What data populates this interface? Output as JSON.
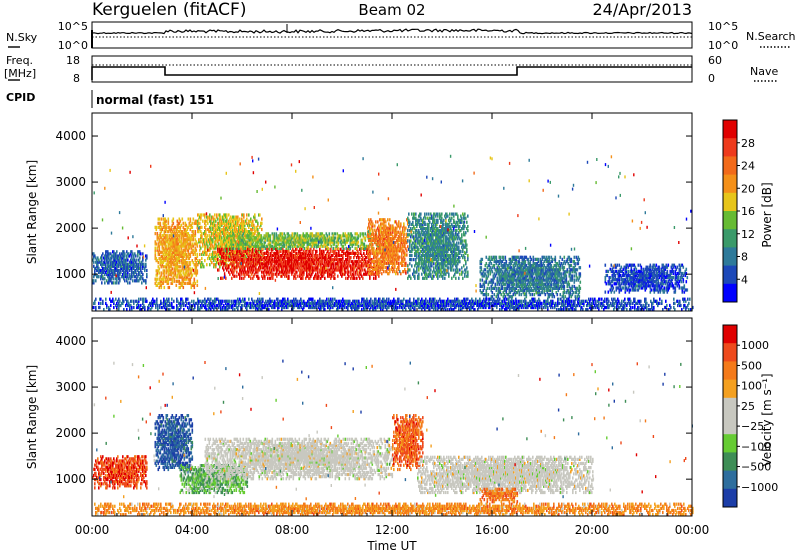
{
  "header": {
    "station": "Kerguelen (fitACF)",
    "beam": "Beam 02",
    "date": "24/Apr/2013"
  },
  "noise_panel": {
    "left_label": "N.Sky",
    "right_label": "N.Search",
    "left_ticks": [
      "10^5",
      "10^0"
    ],
    "right_ticks": [
      "10^5",
      "10^0"
    ]
  },
  "freq_panel": {
    "left_label_1": "Freq.",
    "left_label_2": "[MHz]",
    "right_label": "Nave",
    "left_ticks": [
      "18",
      "8"
    ],
    "right_ticks": [
      "60",
      "0"
    ]
  },
  "cpid_panel": {
    "label": "CPID",
    "value": "normal (fast) 151"
  },
  "chart_data": [
    {
      "type": "heatmap",
      "name": "power",
      "ylabel": "Slant Range [km]",
      "ylim": [
        200,
        4500
      ],
      "yticks": [
        "1000",
        "2000",
        "3000",
        "4000"
      ],
      "xlim": [
        0,
        24
      ],
      "colorbar": {
        "label": "Power [dB]",
        "ticks": [
          "4",
          "8",
          "12",
          "16",
          "20",
          "24",
          "28"
        ],
        "range": [
          0,
          32
        ],
        "colors": [
          "#0000ff",
          "#1c48b8",
          "#2e7a9a",
          "#3a9a6a",
          "#66bb33",
          "#e7c51a",
          "#f49019",
          "#f26a1a",
          "#ee3a1c",
          "#e00000"
        ]
      },
      "features": [
        {
          "t0": 0.0,
          "t1": 2.2,
          "r0": 800,
          "r1": 1500,
          "level": 0.2
        },
        {
          "t0": 2.5,
          "t1": 4.2,
          "r0": 700,
          "r1": 2200,
          "level": 0.62
        },
        {
          "t0": 4.2,
          "t1": 6.8,
          "r0": 1150,
          "r1": 2300,
          "level": 0.55
        },
        {
          "t0": 5.0,
          "t1": 11.5,
          "r0": 900,
          "r1": 1550,
          "level": 0.9
        },
        {
          "t0": 5.5,
          "t1": 11.5,
          "r0": 1550,
          "r1": 1900,
          "level": 0.45
        },
        {
          "t0": 11.0,
          "t1": 12.6,
          "r0": 1000,
          "r1": 2200,
          "level": 0.7
        },
        {
          "t0": 12.6,
          "t1": 15.0,
          "r0": 900,
          "r1": 2300,
          "level": 0.3
        },
        {
          "t0": 15.5,
          "t1": 19.5,
          "r0": 500,
          "r1": 1400,
          "level": 0.25
        },
        {
          "t0": 20.5,
          "t1": 23.8,
          "r0": 600,
          "r1": 1200,
          "level": 0.15
        },
        {
          "t0": 0.0,
          "t1": 24.0,
          "r0": 220,
          "r1": 450,
          "level": 0.15
        }
      ]
    },
    {
      "type": "heatmap",
      "name": "velocity",
      "ylabel": "Slant Range [km]",
      "ylim": [
        200,
        4500
      ],
      "yticks": [
        "1000",
        "2000",
        "3000",
        "4000"
      ],
      "xlim": [
        0,
        24
      ],
      "xticks": [
        "00:00",
        "04:00",
        "08:00",
        "12:00",
        "16:00",
        "20:00",
        "00:00"
      ],
      "xlabel": "Time UT",
      "colorbar": {
        "label": "Velocity [m s⁻¹]",
        "ticks": [
          "1000",
          "500",
          "100",
          "25",
          "−25",
          "−100",
          "−500",
          "−1000"
        ],
        "colors": [
          "#1c3ea8",
          "#2e6e9e",
          "#3e8e56",
          "#66cc33",
          "#c8c8c0",
          "#c8c8c0",
          "#f4a020",
          "#f47a1a",
          "#ee4a1c",
          "#e00000"
        ]
      },
      "features": [
        {
          "t0": 0.0,
          "t1": 2.2,
          "r0": 800,
          "r1": 1500,
          "level": 0.85
        },
        {
          "t0": 2.5,
          "t1": 4.0,
          "r0": 1200,
          "r1": 2400,
          "level": 0.1
        },
        {
          "t0": 3.5,
          "t1": 6.2,
          "r0": 700,
          "r1": 1300,
          "level": 0.32
        },
        {
          "t0": 4.5,
          "t1": 12.0,
          "r0": 1000,
          "r1": 1900,
          "level": 0.5
        },
        {
          "t0": 12.0,
          "t1": 13.2,
          "r0": 1200,
          "r1": 2400,
          "level": 0.8
        },
        {
          "t0": 13.0,
          "t1": 20.0,
          "r0": 700,
          "r1": 1500,
          "level": 0.5
        },
        {
          "t0": 15.5,
          "t1": 17.0,
          "r0": 500,
          "r1": 800,
          "level": 0.75
        },
        {
          "t0": 0.0,
          "t1": 24.0,
          "r0": 220,
          "r1": 450,
          "level": 0.7
        }
      ]
    }
  ]
}
